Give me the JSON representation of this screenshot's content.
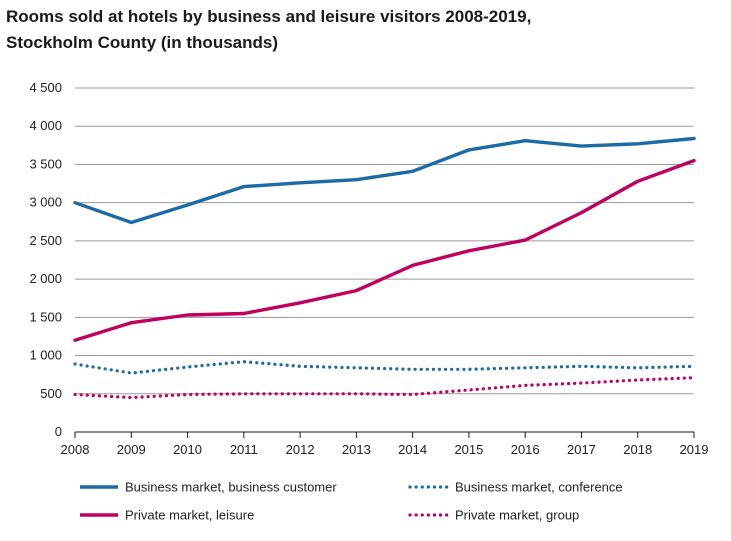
{
  "chart_data": {
    "type": "line",
    "title_line1": "Rooms sold at hotels by business and leisure visitors 2008-2019,",
    "title_line2": "Stockholm County (in thousands)",
    "xlabel": "",
    "ylabel": "",
    "x": [
      "2008",
      "2009",
      "2010",
      "2011",
      "2012",
      "2013",
      "2014",
      "2015",
      "2016",
      "2017",
      "2018",
      "2019"
    ],
    "ylim": [
      0,
      4500
    ],
    "yticks": [
      0,
      500,
      1000,
      1500,
      2000,
      2500,
      3000,
      3500,
      4000,
      4500
    ],
    "ytick_labels": [
      "0",
      "500",
      "1 000",
      "1 500",
      "2 000",
      "2 500",
      "3 000",
      "3 500",
      "4 000",
      "4 500"
    ],
    "grid": true,
    "legend_position": "bottom",
    "series": [
      {
        "name": "Business market, business customer",
        "style": "solid",
        "color": "#1B6BA8",
        "values": [
          3000,
          2740,
          2970,
          3210,
          3260,
          3300,
          3410,
          3690,
          3810,
          3740,
          3770,
          3840
        ]
      },
      {
        "name": "Business market, conference",
        "style": "dotted",
        "color": "#1B6BA8",
        "values": [
          890,
          770,
          850,
          920,
          860,
          840,
          820,
          820,
          840,
          860,
          840,
          860
        ]
      },
      {
        "name": "Private market, leisure",
        "style": "solid",
        "color": "#C0005E",
        "values": [
          1200,
          1430,
          1530,
          1550,
          1690,
          1850,
          2180,
          2370,
          2510,
          2870,
          3280,
          3550
        ]
      },
      {
        "name": "Private market, group",
        "style": "dotted",
        "color": "#C0005E",
        "values": [
          490,
          450,
          490,
          500,
          500,
          500,
          490,
          550,
          610,
          640,
          680,
          710
        ]
      }
    ]
  }
}
